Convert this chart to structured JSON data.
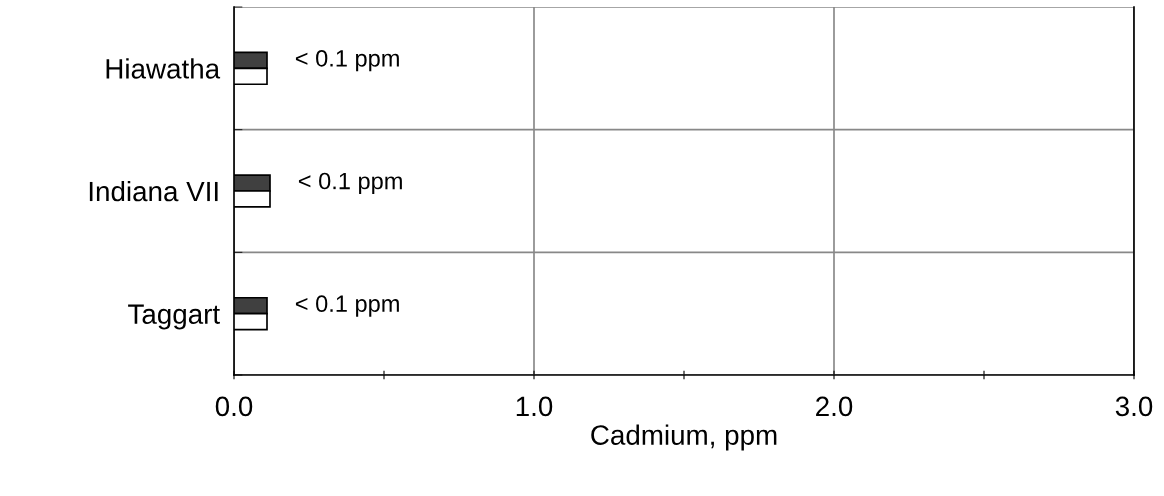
{
  "chart_data": {
    "type": "bar",
    "orientation": "horizontal",
    "xlabel": "Cadmium, ppm",
    "categories": [
      "Hiawatha",
      "Indiana VII",
      "Taggart"
    ],
    "series": [
      {
        "color": "#404040",
        "values": [
          0.11,
          0.12,
          0.11
        ],
        "value_labels": [
          "< 0.1 ppm",
          "< 0.1 ppm",
          "< 0.1 ppm"
        ]
      },
      {
        "color": "#ffffff",
        "values": [
          0.11,
          0.12,
          0.11
        ]
      }
    ],
    "xlim": [
      0,
      3
    ],
    "xticks": [
      {
        "value": 0,
        "label": "0.0"
      },
      {
        "value": 0.5,
        "label": null
      },
      {
        "value": 1,
        "label": "1.0"
      },
      {
        "value": 1.5,
        "label": null
      },
      {
        "value": 2,
        "label": "2.0"
      },
      {
        "value": 2.5,
        "label": null
      },
      {
        "value": 3,
        "label": "3.0"
      }
    ],
    "grid": true
  }
}
